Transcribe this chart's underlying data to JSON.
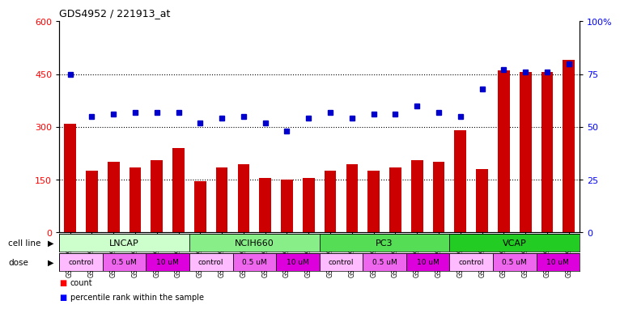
{
  "title": "GDS4952 / 221913_at",
  "samples": [
    "GSM1359772",
    "GSM1359773",
    "GSM1359774",
    "GSM1359775",
    "GSM1359776",
    "GSM1359777",
    "GSM1359760",
    "GSM1359761",
    "GSM1359762",
    "GSM1359763",
    "GSM1359764",
    "GSM1359765",
    "GSM1359778",
    "GSM1359779",
    "GSM1359780",
    "GSM1359781",
    "GSM1359782",
    "GSM1359783",
    "GSM1359766",
    "GSM1359767",
    "GSM1359768",
    "GSM1359769",
    "GSM1359770",
    "GSM1359771"
  ],
  "counts": [
    310,
    175,
    200,
    185,
    205,
    240,
    145,
    185,
    195,
    155,
    150,
    155,
    175,
    195,
    175,
    185,
    205,
    200,
    290,
    180,
    460,
    455,
    455,
    490
  ],
  "percentiles": [
    75,
    55,
    56,
    57,
    57,
    57,
    52,
    54,
    55,
    52,
    48,
    54,
    57,
    54,
    56,
    56,
    60,
    57,
    55,
    68,
    77,
    76,
    76,
    80
  ],
  "cell_lines": [
    {
      "label": "LNCAP",
      "start": 0,
      "end": 6,
      "color": "#ccffcc"
    },
    {
      "label": "NCIH660",
      "start": 6,
      "end": 12,
      "color": "#88ee88"
    },
    {
      "label": "PC3",
      "start": 12,
      "end": 18,
      "color": "#55dd55"
    },
    {
      "label": "VCAP",
      "start": 18,
      "end": 24,
      "color": "#22cc22"
    }
  ],
  "doses": [
    {
      "label": "control",
      "start": 0,
      "end": 2,
      "color": "#ffbbff"
    },
    {
      "label": "0.5 uM",
      "start": 2,
      "end": 4,
      "color": "#ee66ee"
    },
    {
      "label": "10 uM",
      "start": 4,
      "end": 6,
      "color": "#dd00dd"
    },
    {
      "label": "control",
      "start": 6,
      "end": 8,
      "color": "#ffbbff"
    },
    {
      "label": "0.5 uM",
      "start": 8,
      "end": 10,
      "color": "#ee66ee"
    },
    {
      "label": "10 uM",
      "start": 10,
      "end": 12,
      "color": "#dd00dd"
    },
    {
      "label": "control",
      "start": 12,
      "end": 14,
      "color": "#ffbbff"
    },
    {
      "label": "0.5 uM",
      "start": 14,
      "end": 16,
      "color": "#ee66ee"
    },
    {
      "label": "10 uM",
      "start": 16,
      "end": 18,
      "color": "#dd00dd"
    },
    {
      "label": "control",
      "start": 18,
      "end": 20,
      "color": "#ffbbff"
    },
    {
      "label": "0.5 uM",
      "start": 20,
      "end": 22,
      "color": "#ee66ee"
    },
    {
      "label": "10 uM",
      "start": 22,
      "end": 24,
      "color": "#dd00dd"
    }
  ],
  "bar_color": "#cc0000",
  "dot_color": "#0000cc",
  "left_ylim": [
    0,
    600
  ],
  "right_ylim": [
    0,
    100
  ],
  "left_yticks": [
    0,
    150,
    300,
    450,
    600
  ],
  "right_yticks": [
    0,
    25,
    50,
    75,
    100
  ],
  "right_yticklabels": [
    "0",
    "25",
    "50",
    "75",
    "100%"
  ],
  "bg_color": "#ffffff",
  "plot_bg": "#ffffff"
}
